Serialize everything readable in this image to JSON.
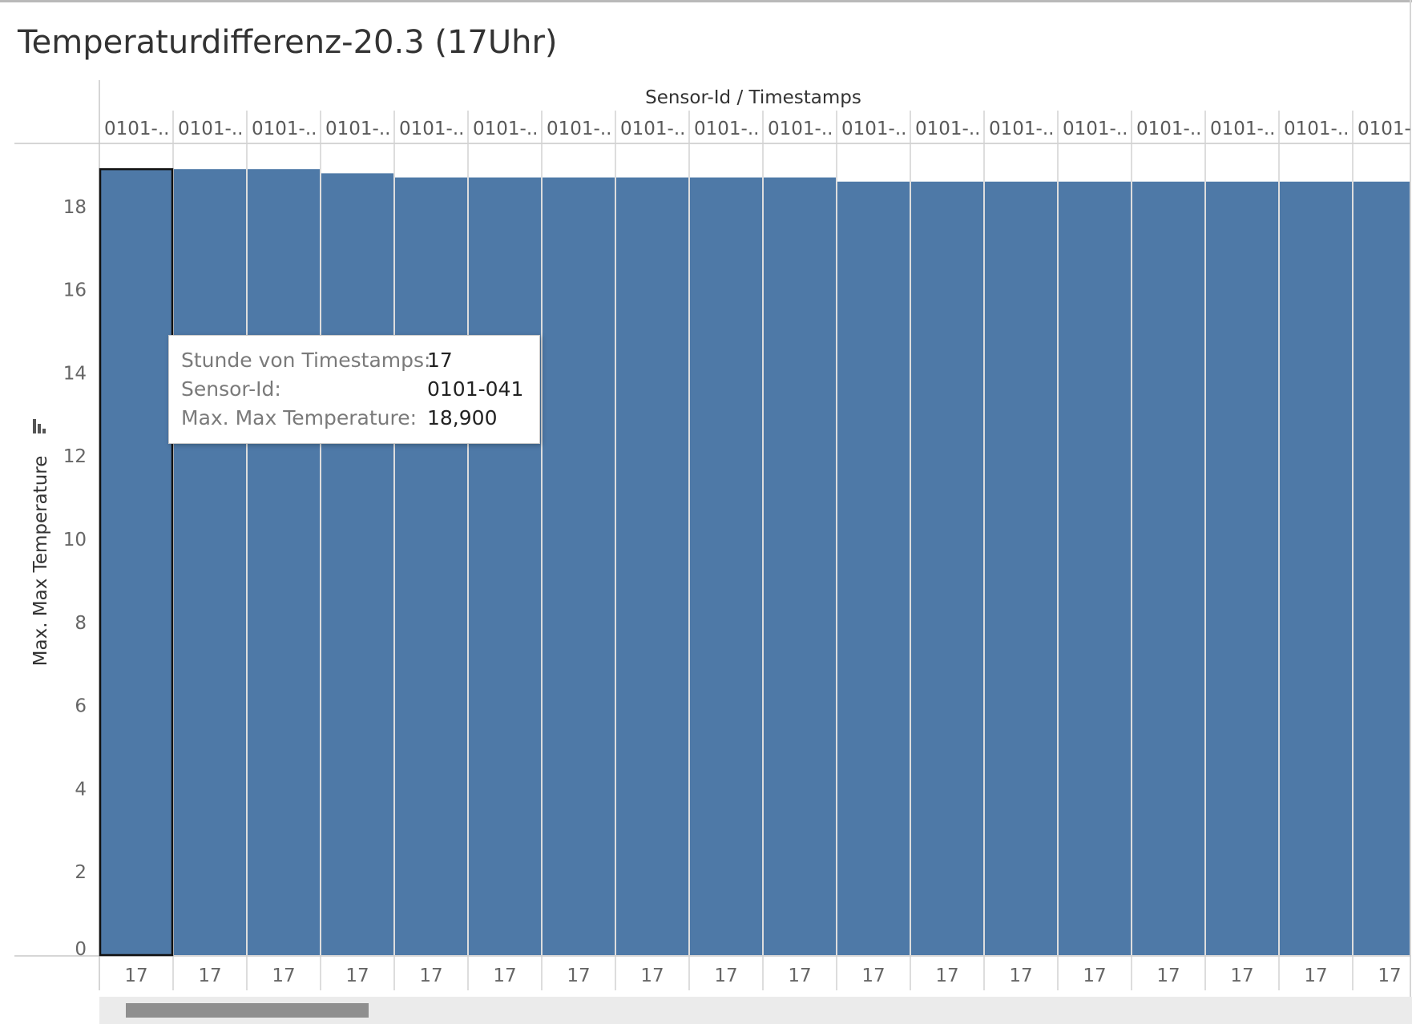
{
  "title": "Temperaturdifferenz-20.3 (17Uhr)",
  "tooltip": {
    "rows": [
      {
        "key": "Stunde von Timestamps:",
        "value": "17"
      },
      {
        "key": "Sensor-Id:",
        "value": "0101-041"
      },
      {
        "key": "Max. Max Temperature:",
        "value": "18,900"
      }
    ]
  },
  "icons": {
    "sort": "sort-bars-icon"
  },
  "colors": {
    "bar": "#4e79a7",
    "selected_outline": "#111111"
  },
  "chart_data": {
    "type": "bar",
    "title": "Temperaturdifferenz-20.3 (17Uhr)",
    "column_header_title": "Sensor-Id / Timestamps",
    "ylabel": "Max. Max Temperature",
    "ylim": [
      0,
      19.5
    ],
    "yticks": [
      0,
      2,
      4,
      6,
      8,
      10,
      12,
      14,
      16,
      18
    ],
    "grid": false,
    "categories": [
      "0101-..",
      "0101-..",
      "0101-..",
      "0101-..",
      "0101-..",
      "0101-..",
      "0101-..",
      "0101-..",
      "0101-..",
      "0101-..",
      "0101-..",
      "0101-..",
      "0101-..",
      "0101-..",
      "0101-..",
      "0101-..",
      "0101-..",
      "0101-"
    ],
    "sub_categories": [
      "17",
      "17",
      "17",
      "17",
      "17",
      "17",
      "17",
      "17",
      "17",
      "17",
      "17",
      "17",
      "17",
      "17",
      "17",
      "17",
      "17",
      "17"
    ],
    "values": [
      18.9,
      18.9,
      18.9,
      18.8,
      18.7,
      18.7,
      18.7,
      18.7,
      18.7,
      18.7,
      18.6,
      18.6,
      18.6,
      18.6,
      18.6,
      18.6,
      18.6,
      18.6
    ],
    "selected_index": 0
  }
}
